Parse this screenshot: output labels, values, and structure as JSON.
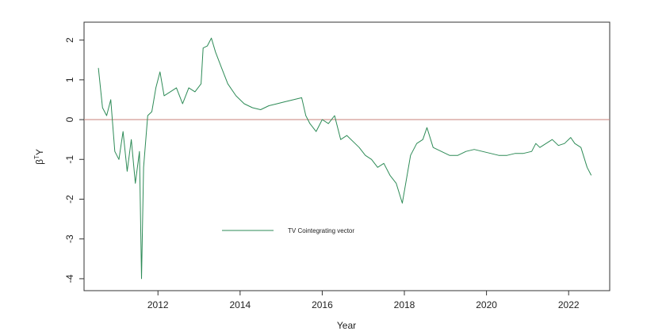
{
  "chart_data": {
    "type": "line",
    "xlabel": "Year",
    "ylabel_base": "β",
    "ylabel_sup": "T",
    "ylabel_tail": "Y",
    "xlim": [
      2010.2,
      2023.0
    ],
    "ylim": [
      -4.3,
      2.45
    ],
    "x_ticks": [
      2012,
      2014,
      2016,
      2018,
      2020,
      2022
    ],
    "x_tick_labels": [
      "2012",
      "2014",
      "2016",
      "2018",
      "2020",
      "2022"
    ],
    "y_ticks": [
      2,
      1,
      0,
      -1,
      -2,
      -3,
      -4
    ],
    "y_tick_labels": [
      "2",
      "1",
      "0",
      "-1",
      "-2",
      "-3",
      "-4"
    ],
    "grid": false,
    "legend_position": "bottom-center",
    "hline": {
      "y": 0,
      "color": "#c8827a"
    },
    "series": [
      {
        "name": "TV Cointegrating vector",
        "color": "#2e8b57",
        "x": [
          2010.55,
          2010.65,
          2010.75,
          2010.85,
          2010.95,
          2011.05,
          2011.15,
          2011.25,
          2011.35,
          2011.45,
          2011.55,
          2011.6,
          2011.65,
          2011.75,
          2011.85,
          2011.95,
          2012.05,
          2012.15,
          2012.3,
          2012.45,
          2012.6,
          2012.75,
          2012.9,
          2013.05,
          2013.1,
          2013.2,
          2013.3,
          2013.4,
          2013.55,
          2013.7,
          2013.9,
          2014.1,
          2014.3,
          2014.5,
          2014.7,
          2014.9,
          2015.1,
          2015.3,
          2015.5,
          2015.6,
          2015.7,
          2015.85,
          2016.0,
          2016.15,
          2016.3,
          2016.45,
          2016.6,
          2016.75,
          2016.9,
          2017.05,
          2017.2,
          2017.35,
          2017.5,
          2017.65,
          2017.8,
          2017.95,
          2018.05,
          2018.15,
          2018.3,
          2018.45,
          2018.55,
          2018.7,
          2018.9,
          2019.1,
          2019.3,
          2019.5,
          2019.7,
          2019.9,
          2020.1,
          2020.3,
          2020.5,
          2020.7,
          2020.9,
          2021.1,
          2021.2,
          2021.3,
          2021.45,
          2021.6,
          2021.75,
          2021.9,
          2022.05,
          2022.15,
          2022.3,
          2022.45,
          2022.55
        ],
        "y": [
          1.3,
          0.3,
          0.1,
          0.5,
          -0.8,
          -1.0,
          -0.3,
          -1.3,
          -0.5,
          -1.6,
          -0.8,
          -4.0,
          -1.2,
          0.1,
          0.2,
          0.8,
          1.2,
          0.6,
          0.7,
          0.8,
          0.4,
          0.8,
          0.7,
          0.9,
          1.8,
          1.85,
          2.05,
          1.7,
          1.3,
          0.9,
          0.6,
          0.4,
          0.3,
          0.25,
          0.35,
          0.4,
          0.45,
          0.5,
          0.55,
          0.1,
          -0.1,
          -0.3,
          0.0,
          -0.1,
          0.1,
          -0.5,
          -0.4,
          -0.55,
          -0.7,
          -0.9,
          -1.0,
          -1.2,
          -1.1,
          -1.4,
          -1.6,
          -2.1,
          -1.5,
          -0.9,
          -0.6,
          -0.5,
          -0.2,
          -0.7,
          -0.8,
          -0.9,
          -0.9,
          -0.8,
          -0.75,
          -0.8,
          -0.85,
          -0.9,
          -0.9,
          -0.85,
          -0.85,
          -0.8,
          -0.6,
          -0.7,
          -0.6,
          -0.5,
          -0.65,
          -0.6,
          -0.45,
          -0.6,
          -0.7,
          -1.2,
          -1.4
        ]
      }
    ]
  }
}
